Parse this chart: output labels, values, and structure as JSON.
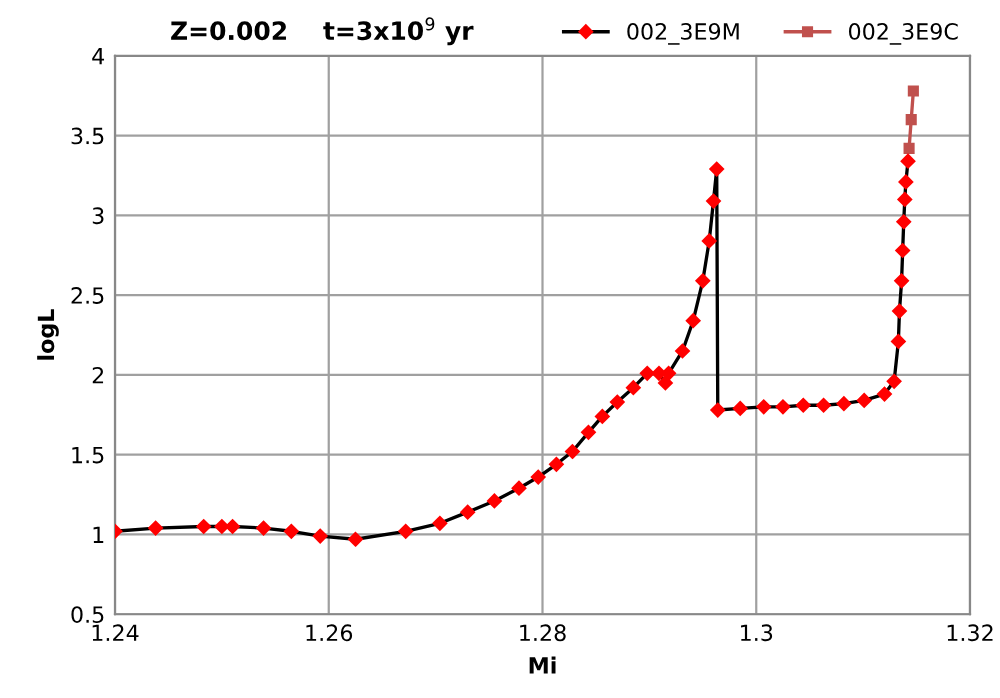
{
  "chart_data": {
    "type": "line",
    "title": "Z=0.002    t=3x10$^{9}$ yr",
    "xlabel": "Mi",
    "ylabel": "logL",
    "xlim": [
      1.24,
      1.32
    ],
    "xticks": [
      1.24,
      1.26,
      1.28,
      1.3,
      1.32
    ],
    "ylim": [
      0.5,
      4
    ],
    "yticks": [
      0.5,
      1,
      1.5,
      2,
      2.5,
      3,
      3.5,
      4
    ],
    "grid": true,
    "legend": "top right",
    "series": [
      {
        "name": "002_3E9M",
        "color": "#ff0000",
        "marker": "diamond",
        "x": [
          1.24,
          1.2438,
          1.2483,
          1.25,
          1.251,
          1.2539,
          1.2565,
          1.2592,
          1.2625,
          1.2672,
          1.2704,
          1.273,
          1.2755,
          1.2778,
          1.2796,
          1.2813,
          1.2828,
          1.2843,
          1.2856,
          1.287,
          1.2885,
          1.2898,
          1.2909,
          1.2915,
          1.2918,
          1.2931,
          1.2941,
          1.295,
          1.2956,
          1.296,
          1.2963,
          1.2964,
          1.2985,
          1.3007,
          1.3025,
          1.3044,
          1.3063,
          1.3082,
          1.3101,
          1.312,
          1.3129,
          1.3133,
          1.3134,
          1.3136,
          1.3137,
          1.3138,
          1.3139,
          1.314,
          1.3142
        ],
        "values": [
          1.02,
          1.04,
          1.05,
          1.05,
          1.05,
          1.04,
          1.02,
          0.99,
          0.97,
          1.02,
          1.07,
          1.14,
          1.21,
          1.29,
          1.36,
          1.44,
          1.52,
          1.64,
          1.74,
          1.83,
          1.92,
          2.01,
          2.01,
          1.95,
          2.01,
          2.15,
          2.34,
          2.59,
          2.84,
          3.09,
          3.29,
          1.78,
          1.79,
          1.8,
          1.8,
          1.81,
          1.81,
          1.82,
          1.84,
          1.88,
          1.96,
          2.21,
          2.4,
          2.59,
          2.78,
          2.96,
          3.1,
          3.21,
          3.34
        ]
      },
      {
        "name": "002_3E9C",
        "color": "#c0504d",
        "marker": "square",
        "x": [
          1.3143,
          1.3145,
          1.3147
        ],
        "values": [
          3.42,
          3.6,
          3.78
        ]
      }
    ]
  }
}
